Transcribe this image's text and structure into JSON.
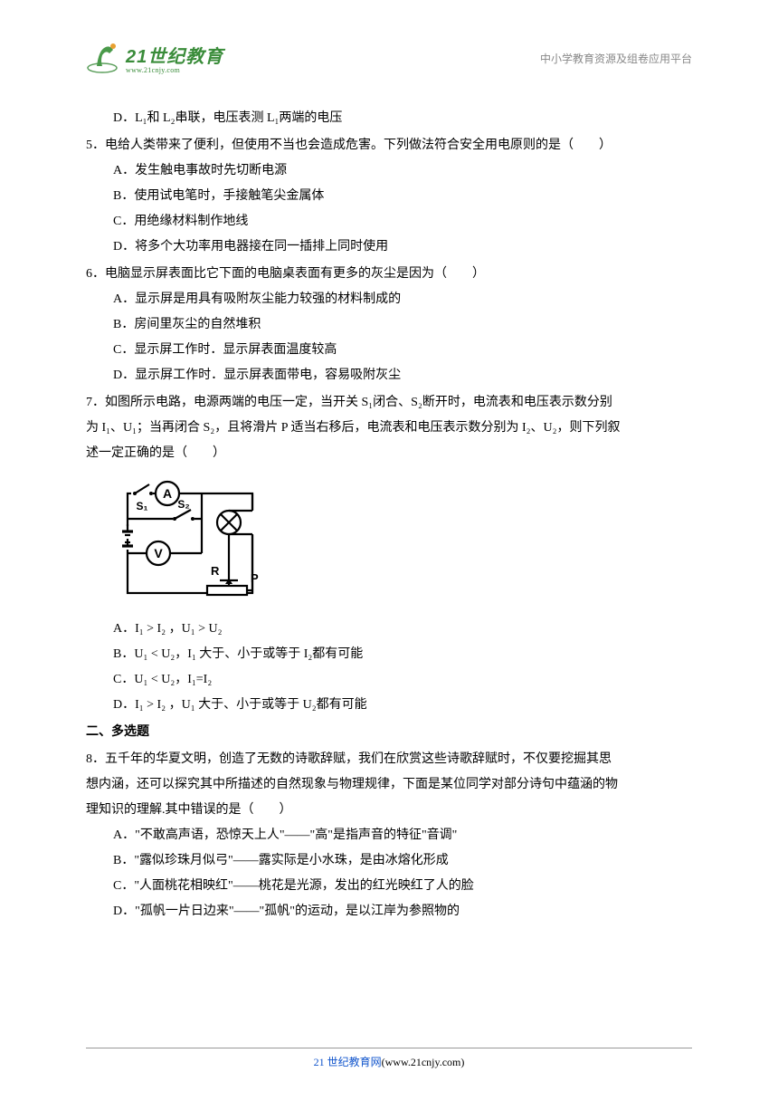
{
  "header": {
    "logo_cn": "21世纪教育",
    "logo_en": "www.21cnjy.com",
    "right_text": "中小学教育资源及组卷应用平台"
  },
  "content": {
    "q4_d": "D．L₁和 L₂串联，电压表测 L₁两端的电压",
    "q5": "5．电给人类带来了便利，但使用不当也会造成危害。下列做法符合安全用电原则的是（　　）",
    "q5_a": "A．发生触电事故时先切断电源",
    "q5_b": "B．使用试电笔时，手接触笔尖金属体",
    "q5_c": "C．用绝缘材料制作地线",
    "q5_d": "D．将多个大功率用电器接在同一插排上同时使用",
    "q6": "6．电脑显示屏表面比它下面的电脑桌表面有更多的灰尘是因为（　　）",
    "q6_a": "A．显示屏是用具有吸附灰尘能力较强的材料制成的",
    "q6_b": "B．房间里灰尘的自然堆积",
    "q6_c": "C．显示屏工作时．显示屏表面温度较高",
    "q6_d": "D．显示屏工作时．显示屏表面带电，容易吸附灰尘",
    "q7_1": "7．如图所示电路，电源两端的电压一定，当开关 S₁闭合、S₂断开时，电流表和电压表示数分别",
    "q7_2": "为 I₁、U₁；当再闭合 S₂，且将滑片 P 适当右移后，电流表和电压表示数分别为 I₂、U₂，则下列叙",
    "q7_3": "述一定正确的是（　　）",
    "q7_a": "A．I₁ > I₂ ，U₁ > U₂",
    "q7_b": "B．U₁ < U₂，I₁ 大于、小于或等于 I₂都有可能",
    "q7_c": "C．U₁ < U₂，I₁=I₂",
    "q7_d": "D．I₁ > I₂ ，U₁ 大于、小于或等于 U₂都有可能",
    "section2": "二、多选题",
    "q8_1": "8．五千年的华夏文明，创造了无数的诗歌辞赋，我们在欣赏这些诗歌辞赋时，不仅要挖掘其思",
    "q8_2": "想内涵，还可以探究其中所描述的自然现象与物理规律，下面是某位同学对部分诗句中蕴涵的物",
    "q8_3": "理知识的理解.其中错误的是（　　）",
    "q8_a": "A．\"不敢高声语，恐惊天上人\"——\"高\"是指声音的特征\"音调\"",
    "q8_b": "B．\"露似珍珠月似弓\"——露实际是小水珠，是由冰熔化形成",
    "q8_c": "C．\"人面桃花相映红\"——桃花是光源，发出的红光映红了人的脸",
    "q8_d": "D．\"孤帆一片日边来\"——\"孤帆\"的运动，是以江岸为参照物的"
  },
  "circuit": {
    "labels": {
      "a": "A",
      "v": "V",
      "s1": "S₁",
      "s2": "S₂",
      "l": "L",
      "r": "R",
      "p": "P"
    },
    "stroke": "#000000",
    "stroke_width": 2.2
  },
  "footer": {
    "text_blue": "21 世纪教育网",
    "text_black": "(www.21cnjy.com)"
  }
}
